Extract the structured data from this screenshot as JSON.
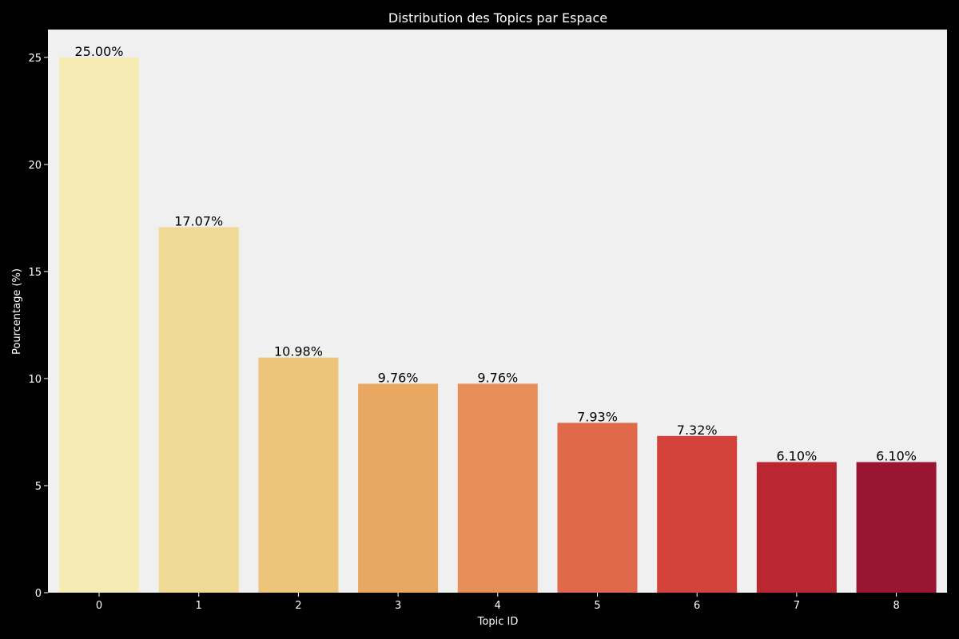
{
  "chart_data": {
    "type": "bar",
    "title": "Distribution des Topics par Espace",
    "xlabel": "Topic ID",
    "ylabel": "Pourcentage (%)",
    "categories": [
      "0",
      "1",
      "2",
      "3",
      "4",
      "5",
      "6",
      "7",
      "8"
    ],
    "values": [
      25.0,
      17.07,
      10.98,
      9.76,
      9.76,
      7.93,
      7.32,
      6.1,
      6.1
    ],
    "data_labels": [
      "25.00%",
      "17.07%",
      "10.98%",
      "9.76%",
      "9.76%",
      "7.93%",
      "7.32%",
      "6.10%",
      "6.10%"
    ],
    "yticks": [
      0,
      5,
      10,
      15,
      20,
      25
    ],
    "ytick_labels": [
      "0",
      "5",
      "10",
      "15",
      "20",
      "25"
    ],
    "ylim": [
      0,
      26.3
    ],
    "grid": false,
    "colors": {
      "figure_background": "#000000",
      "plot_background": "#f0f0f0",
      "text": "#ffffff",
      "data_label_text": "#000000",
      "bars": [
        "#f5ebb3",
        "#efd995",
        "#ecc47a",
        "#e8a862",
        "#e68f58",
        "#e0684b",
        "#d4433b",
        "#bb2633",
        "#9a1532"
      ]
    }
  }
}
